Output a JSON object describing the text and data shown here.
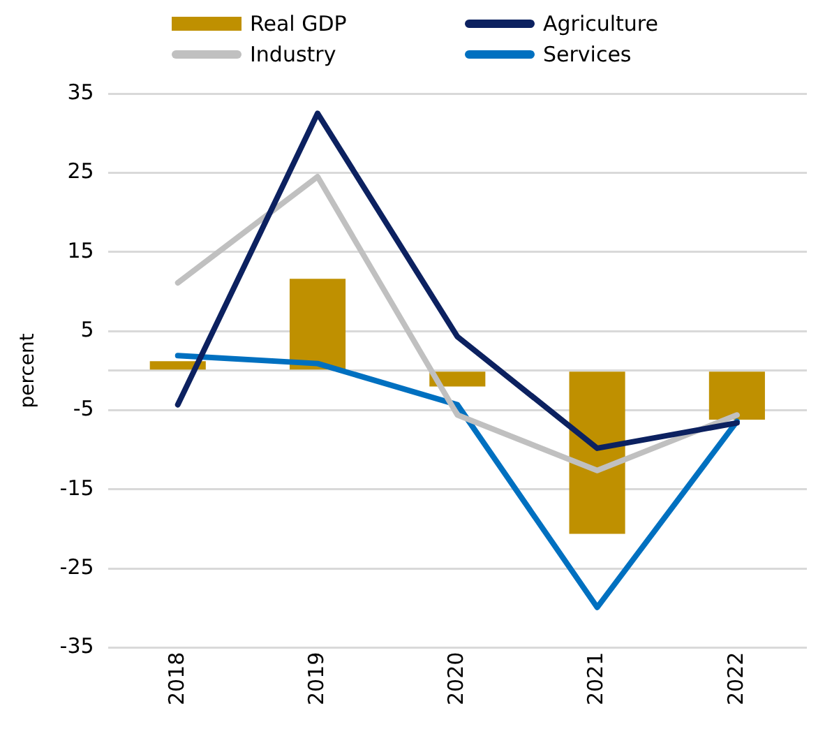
{
  "chart_data": {
    "type": "bar",
    "ylabel": "percent",
    "categories": [
      "2018",
      "2019",
      "2020",
      "2021",
      "2022"
    ],
    "series": [
      {
        "name": "Real GDP",
        "color": "#bf9000",
        "values": [
          1.2,
          11.6,
          -2.0,
          -20.6,
          -6.2
        ]
      },
      {
        "name": "Agriculture",
        "type": "line",
        "color": "#0c2160",
        "values": [
          -4.3,
          32.5,
          4.3,
          -9.8,
          -6.6
        ]
      },
      {
        "name": "Industry",
        "type": "line",
        "color": "#c0c0c0",
        "values": [
          11.1,
          24.5,
          -5.6,
          -12.6,
          -5.6
        ]
      },
      {
        "name": "Services",
        "type": "line",
        "color": "#0070c0",
        "values": [
          1.9,
          0.9,
          -4.3,
          -29.9,
          -6.4
        ]
      }
    ],
    "ylim": [
      -35,
      35
    ],
    "yticks": [
      -35,
      -25,
      -15,
      -5,
      {
        "value": 0,
        "label": null
      },
      5,
      15,
      25,
      35
    ],
    "grid": "y",
    "legend": "top",
    "marker": "none",
    "line_style": "solid"
  }
}
